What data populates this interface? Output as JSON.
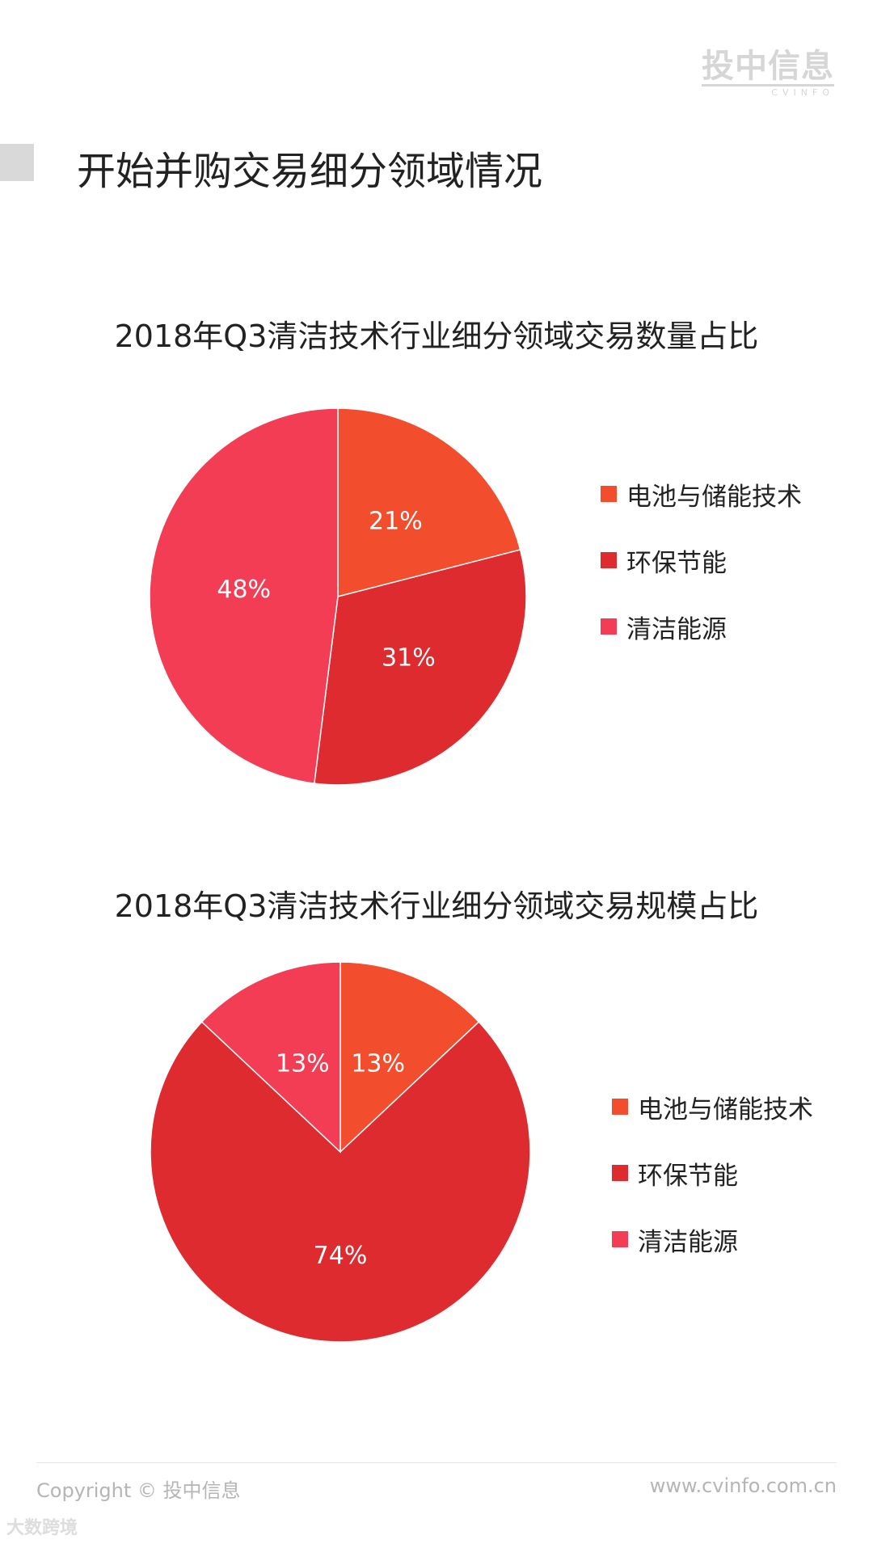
{
  "logo": {
    "cn": "投中信息",
    "en": "CVINFO"
  },
  "page_title": "开始并购交易细分领域情况",
  "colors": {
    "battery": "#f24e2d",
    "eco": "#de2b2f",
    "clean": "#f23d54"
  },
  "chart_data": [
    {
      "type": "pie",
      "title": "2018年Q3清洁技术行业细分领域交易数量占比",
      "categories": [
        "电池与储能技术",
        "环保节能",
        "清洁能源"
      ],
      "values": [
        21,
        31,
        48
      ],
      "labels": [
        "21%",
        "31%",
        "48%"
      ],
      "legend": "right"
    },
    {
      "type": "pie",
      "title": "2018年Q3清洁技术行业细分领域交易规模占比",
      "categories": [
        "电池与储能技术",
        "环保节能",
        "清洁能源"
      ],
      "values": [
        13,
        74,
        13
      ],
      "labels": [
        "13%",
        "74%",
        "13%"
      ],
      "legend": "right"
    }
  ],
  "footer": {
    "copyright": "Copyright © 投中信息",
    "url": "www.cvinfo.com.cn"
  },
  "watermark": "大数跨境"
}
